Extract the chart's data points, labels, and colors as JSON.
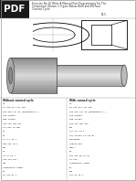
{
  "title_line1": "Exercise No.10 Write A Manual Part Programming For The",
  "title_line2": "Component Shown in Figure Below With and Without",
  "title_line3": "Canned Cycle",
  "pdf_label": "PDF",
  "page_bg": "#ffffff",
  "left_col_title": "Without canned cycle",
  "right_col_title": "With canned cycle",
  "left_col_lines": [
    "O4",
    "N5 G18 G21 G71 F60",
    "N10 G28 G91 Z0 (REFERENCE P.)",
    "G18 G18888",
    "G08 G79888",
    "N85 G40 G00 X51",
    "G4 X954 Z4 M01",
    "G1",
    "N1",
    "G8 Z-1 Z6 1",
    "G08 X51 Z0 T",
    "N54",
    "G0",
    "G1 G1 Z1 1",
    "G18 G18 G11",
    "G18",
    "COORDINATE TURNS",
    "E1",
    "G1 G94 N4 1"
  ],
  "right_col_lines": [
    "O4",
    "N5 G18 G21 G71 F60",
    "N10 G28 G91 Z0 (REFERENCE P.)",
    "G18 G18888",
    "G08 G79888",
    "N85 G40 G00 X51",
    "N54",
    "G17 G17 N4 1",
    "N87 G19G28 G8 T56 N1",
    "G10G18888",
    "G10G19 G58",
    "G4517",
    "N4",
    "N87 G40 G0 G1 G1",
    "G8 G18",
    "COORDINATE TURNS",
    "E1",
    "N54",
    "G17 G1 G8 1"
  ],
  "draw_bg": "#e8eaed",
  "render_bg": "#c8c8c8",
  "border_color": "#999999",
  "pdf_box_color": "#1a1a1a",
  "pdf_text_color": "#ffffff",
  "text_color": "#333333",
  "code_color": "#222222"
}
